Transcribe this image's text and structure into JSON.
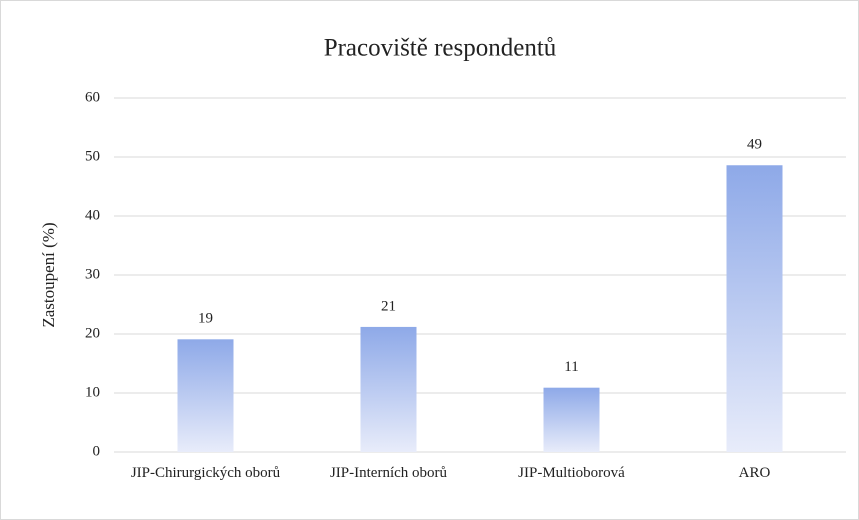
{
  "chart_data": {
    "type": "bar",
    "title": "Pracoviště respondentů",
    "y_label": "Zastoupení (%)",
    "categories": [
      "JIP-Chirurgických oborů",
      "JIP-Interních oborů",
      "JIP-Multioborová",
      "ARO"
    ],
    "values": [
      19.1,
      21.2,
      10.9,
      48.6
    ],
    "value_labels": [
      "19",
      "21",
      "11",
      "49"
    ],
    "color": "#8ea9e8",
    "ylim": [
      0,
      60
    ],
    "yticks": [
      0,
      10,
      20,
      30,
      40,
      50,
      60
    ],
    "grid": true
  }
}
